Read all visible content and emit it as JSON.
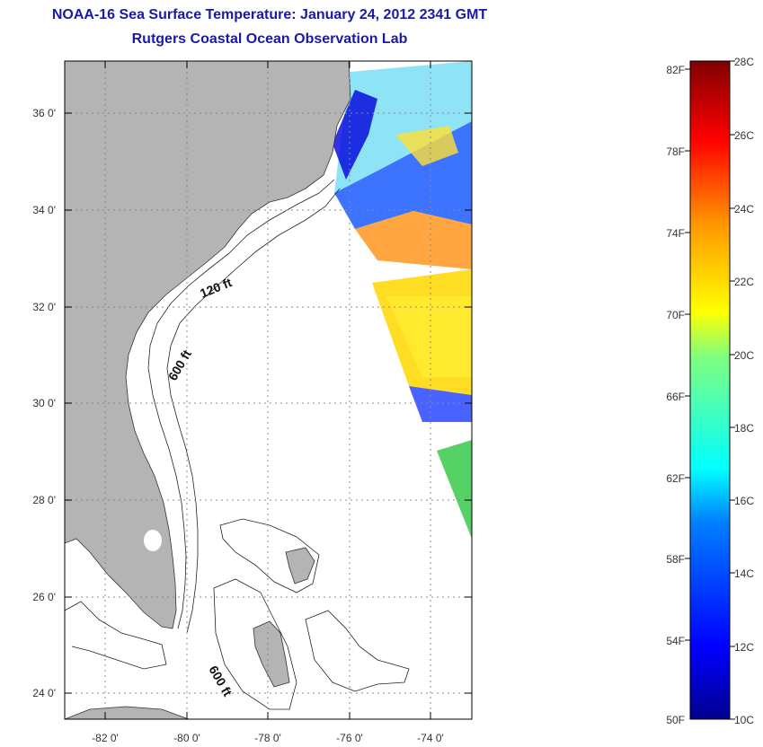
{
  "title": {
    "line1": "NOAA-16 Sea Surface Temperature:  January 24, 2012 2341 GMT",
    "line2": "Rutgers Coastal Ocean Observation Lab"
  },
  "map": {
    "lat_labels": [
      "36 0'",
      "34 0'",
      "32 0'",
      "30 0'",
      "28 0'",
      "26 0'",
      "24 0'"
    ],
    "lon_labels": [
      "-82 0'",
      "-80 0'",
      "-78 0'",
      "-76 0'",
      "-74 0'"
    ],
    "contour_labels": [
      "120 ft",
      "600 ft",
      "600 ft"
    ],
    "colors": {
      "land": "#b4b4b4",
      "ocean": "#ffffff",
      "grid": "#888888"
    }
  },
  "colorbar": {
    "fahrenheit_labels": [
      "82F",
      "78F",
      "74F",
      "70F",
      "66F",
      "62F",
      "58F",
      "54F",
      "50F"
    ],
    "celsius_labels": [
      "28C",
      "26C",
      "24C",
      "22C",
      "20C",
      "18C",
      "16C",
      "14C",
      "12C",
      "10C"
    ]
  }
}
